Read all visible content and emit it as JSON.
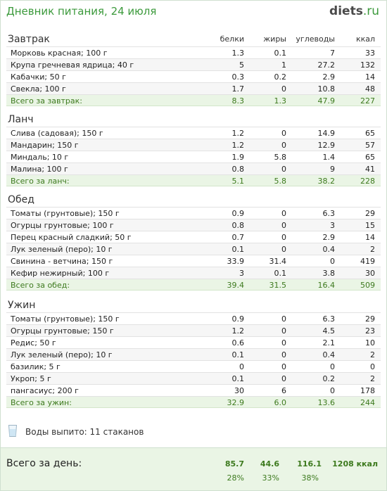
{
  "header": {
    "title": "Дневник питания, 24 июля",
    "logo_main": "diets",
    "logo_tld": ".ru"
  },
  "columns": {
    "b": "белки",
    "z": "жиры",
    "u": "углеводы",
    "k": "ккал"
  },
  "meals": [
    {
      "title": "Завтрак",
      "rows": [
        [
          "Морковь красная; 100 г",
          "1.3",
          "0.1",
          "7",
          "33"
        ],
        [
          "Крупа гречневая ядрица; 40 г",
          "5",
          "1",
          "27.2",
          "132"
        ],
        [
          "Кабачки; 50 г",
          "0.3",
          "0.2",
          "2.9",
          "14"
        ],
        [
          "Свекла; 100 г",
          "1.7",
          "0",
          "10.8",
          "48"
        ]
      ],
      "total": [
        "Всего за завтрак:",
        "8.3",
        "1.3",
        "47.9",
        "227"
      ]
    },
    {
      "title": "Ланч",
      "rows": [
        [
          "Слива (садовая); 150 г",
          "1.2",
          "0",
          "14.9",
          "65"
        ],
        [
          "Мандарин; 150 г",
          "1.2",
          "0",
          "12.9",
          "57"
        ],
        [
          "Миндаль; 10 г",
          "1.9",
          "5.8",
          "1.4",
          "65"
        ],
        [
          "Малина; 100 г",
          "0.8",
          "0",
          "9",
          "41"
        ]
      ],
      "total": [
        "Всего за ланч:",
        "5.1",
        "5.8",
        "38.2",
        "228"
      ]
    },
    {
      "title": "Обед",
      "rows": [
        [
          "Томаты (грунтовые); 150 г",
          "0.9",
          "0",
          "6.3",
          "29"
        ],
        [
          "Огурцы грунтовые; 100 г",
          "0.8",
          "0",
          "3",
          "15"
        ],
        [
          "Перец красный сладкий; 50 г",
          "0.7",
          "0",
          "2.9",
          "14"
        ],
        [
          "Лук зеленый (перо); 10 г",
          "0.1",
          "0",
          "0.4",
          "2"
        ],
        [
          "Свинина - ветчина; 150 г",
          "33.9",
          "31.4",
          "0",
          "419"
        ],
        [
          "Кефир нежирный; 100 г",
          "3",
          "0.1",
          "3.8",
          "30"
        ]
      ],
      "total": [
        "Всего за обед:",
        "39.4",
        "31.5",
        "16.4",
        "509"
      ]
    },
    {
      "title": "Ужин",
      "rows": [
        [
          "Томаты (грунтовые); 150 г",
          "0.9",
          "0",
          "6.3",
          "29"
        ],
        [
          "Огурцы грунтовые; 150 г",
          "1.2",
          "0",
          "4.5",
          "23"
        ],
        [
          "Редис; 50 г",
          "0.6",
          "0",
          "2.1",
          "10"
        ],
        [
          "Лук зеленый (перо); 10 г",
          "0.1",
          "0",
          "0.4",
          "2"
        ],
        [
          "базилик; 5 г",
          "0",
          "0",
          "0",
          "0"
        ],
        [
          "Укроп; 5 г",
          "0.1",
          "0",
          "0.2",
          "2"
        ],
        [
          "пангасиус; 200 г",
          "30",
          "6",
          "0",
          "178"
        ]
      ],
      "total": [
        "Всего за ужин:",
        "32.9",
        "6.0",
        "13.6",
        "244"
      ]
    }
  ],
  "water": {
    "icon": "glass-icon",
    "text": "Воды выпито: 11 стаканов"
  },
  "day": {
    "title": "Всего за день:",
    "b": "85.7",
    "z": "44.6",
    "u": "116.1",
    "k": "1208 ккал",
    "pb": "28%",
    "pz": "33%",
    "pu": "38%"
  },
  "colors": {
    "accent": "#3c9a3c",
    "total_bg": "#eaf5e5",
    "total_text": "#3d7a1e"
  }
}
